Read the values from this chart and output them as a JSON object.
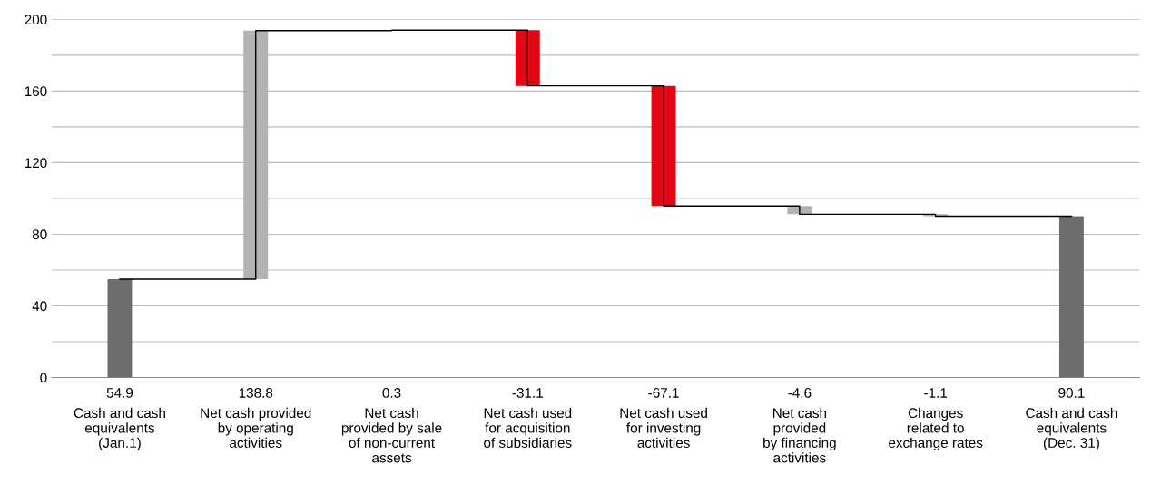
{
  "chart_data": {
    "type": "bar",
    "categories": [
      "Cash and cash\nequivalents\n(Jan.1)",
      "Net cash provided\nby operating\nactivities",
      "Net cash\nprovided by sale\nof non-current\nassets",
      "Net cash used\nfor acquisition\nof subsidiaries",
      "Net cash used\nfor investing\nactivities",
      "Net cash\nprovided\nby financing\nactivities",
      "Changes\nrelated to\nexchange rates",
      "Cash and cash\nequivalents\n(Dec. 31)"
    ],
    "values": [
      54.9,
      138.8,
      0.3,
      -31.1,
      -67.1,
      -4.6,
      -1.1,
      90.1
    ],
    "base": [
      0,
      54.9,
      193.7,
      194.0,
      162.9,
      95.8,
      91.2,
      0
    ],
    "colors": [
      "#6d6d6d",
      "#b3b3b3",
      "#b3b3b3",
      "#e30613",
      "#e30613",
      "#b3b3b3",
      "#b3b3b3",
      "#6d6d6d"
    ],
    "series": [
      {
        "type": "step",
        "color": "#000000",
        "values": [
          54.9,
          193.7,
          194.0,
          162.9,
          95.8,
          91.2,
          90.1,
          90.1
        ]
      }
    ],
    "value_labels": [
      "54.9",
      "138.8",
      "0.3",
      "-31.1",
      "-67.1",
      "-4.6",
      "-1.1",
      "90.1"
    ],
    "ylim": [
      0,
      200
    ],
    "yticks": [
      0,
      {
        "value": 20,
        "label": null
      },
      40,
      {
        "value": 60,
        "label": null
      },
      80,
      {
        "value": 100,
        "label": null
      },
      120,
      {
        "value": 140,
        "label": null
      },
      160,
      {
        "value": 180,
        "label": null
      },
      200
    ],
    "grid": "y",
    "legend": false
  }
}
